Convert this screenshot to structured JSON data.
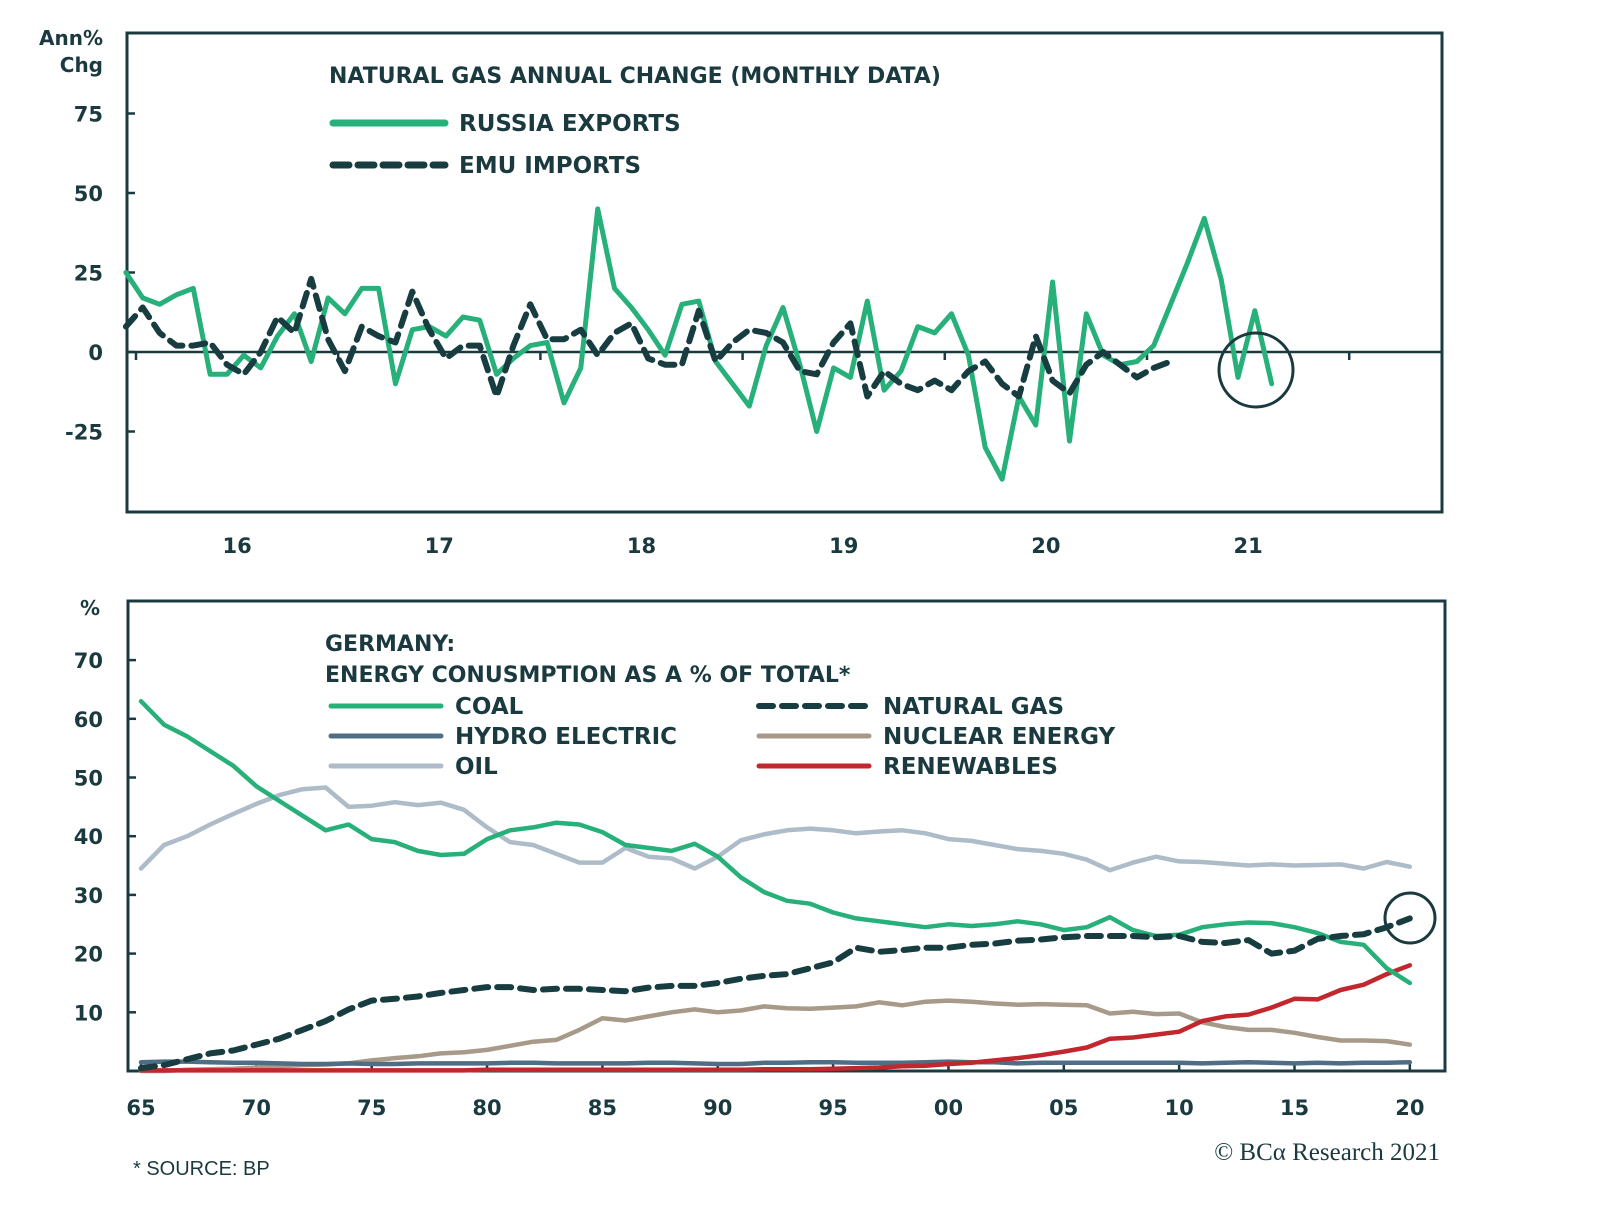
{
  "colors": {
    "axis": "#1b3a3f",
    "russia": "#27b07a",
    "emu": "#173d40",
    "coal": "#27b07a",
    "natural_gas": "#173d40",
    "hydro": "#4f6e85",
    "nuclear": "#a89a88",
    "oil": "#adbcc8",
    "renewables": "#c1272d"
  },
  "chart_data": [
    {
      "type": "line",
      "title": "NATURAL GAS ANNUAL CHANGE (MONTHLY DATA)",
      "ylabel_line1": "Ann%",
      "ylabel_line2": "Chg",
      "xlabel": "",
      "ylim": [
        -50,
        100
      ],
      "yticks": [
        75,
        50,
        25,
        0,
        -25
      ],
      "ytick_labels": [
        "75",
        "50",
        "25",
        "0",
        "-25"
      ],
      "xlim": [
        2015.92,
        2022.42
      ],
      "xticks": [
        2016.5,
        2017.5,
        2018.5,
        2019.5,
        2020.5,
        2021.5
      ],
      "xtick_labels": [
        "16",
        "17",
        "18",
        "19",
        "20",
        "21"
      ],
      "x_start": 2015.95,
      "x_step_months": 1,
      "grid": false,
      "legend": "top-left",
      "annotation": "circle around latest readings (mid-2021)",
      "series": [
        {
          "name": "RUSSIA EXPORTS",
          "style": "solid",
          "values": [
            25,
            17,
            15,
            18,
            20,
            -7,
            -7,
            -1,
            -5,
            5,
            12,
            -3,
            17,
            12,
            20,
            20,
            -10,
            7,
            8,
            5,
            11,
            10,
            -7,
            -2,
            2,
            3,
            -16,
            -5,
            45,
            20,
            14,
            7,
            -1,
            15,
            16,
            -3,
            -10,
            -17,
            2,
            14,
            -4,
            -25,
            -5,
            -8,
            16,
            -12,
            -6,
            8,
            6,
            12,
            -1,
            -30,
            -40,
            -14,
            -23,
            22,
            -28,
            12,
            -1,
            -4,
            -3,
            2,
            15,
            28,
            42,
            23,
            -8,
            13,
            -10
          ]
        },
        {
          "name": "EMU IMPORTS",
          "style": "dashed",
          "values": [
            8,
            14,
            6,
            2,
            2,
            3,
            -4,
            -7,
            0,
            11,
            6,
            23,
            4,
            -6,
            8,
            5,
            3,
            19,
            7,
            -2,
            2,
            2,
            -14,
            2,
            15,
            4,
            4,
            7,
            -1,
            6,
            9,
            -2,
            -4,
            -4,
            13,
            -3,
            3,
            7,
            6,
            3,
            -6,
            -7,
            3,
            9,
            -14,
            -6,
            -10,
            -12,
            -9,
            -12,
            -6,
            -3,
            -10,
            -14,
            5,
            -9,
            -13,
            -4,
            0,
            -4,
            -8,
            -5,
            -3
          ]
        }
      ]
    },
    {
      "type": "line",
      "title_line1": "GERMANY:",
      "title_line2": "ENERGY CONUSMPTION AS A % OF TOTAL*",
      "ylabel": "%",
      "xlabel": "",
      "ylim": [
        0,
        75
      ],
      "yticks": [
        70,
        60,
        50,
        40,
        30,
        20,
        10
      ],
      "ytick_labels": [
        "70",
        "60",
        "50",
        "40",
        "30",
        "20",
        "10"
      ],
      "xlim": [
        1964.4,
        2021.6
      ],
      "xticks": [
        1965,
        1970,
        1975,
        1980,
        1985,
        1990,
        1995,
        2000,
        2005,
        2010,
        2015,
        2020
      ],
      "xtick_labels": [
        "65",
        "70",
        "75",
        "80",
        "85",
        "90",
        "95",
        "00",
        "05",
        "10",
        "15",
        "20"
      ],
      "x_start": 1965,
      "x_step_years": 1,
      "grid": false,
      "legend": "top-center",
      "annotation": "circle around natural gas 2020 value",
      "series": [
        {
          "name": "COAL",
          "style": "solid",
          "values": [
            63,
            59,
            57,
            54.5,
            52,
            48.5,
            46,
            43.5,
            41,
            42,
            39.5,
            39,
            37.5,
            36.8,
            37,
            39.5,
            41,
            41.5,
            42.3,
            42,
            40.7,
            38.5,
            38,
            37.5,
            38.7,
            36.5,
            33,
            30.5,
            29,
            28.5,
            27,
            26,
            25.5,
            25,
            24.5,
            25,
            24.7,
            25,
            25.5,
            25,
            24,
            24.5,
            26.2,
            24,
            23,
            23.2,
            24.5,
            25,
            25.3,
            25.2,
            24.5,
            23.5,
            22,
            21.5,
            17.5,
            15
          ]
        },
        {
          "name": "NATURAL GAS",
          "style": "dashed",
          "values": [
            0.5,
            1,
            2,
            3,
            3.5,
            4.5,
            5.5,
            7,
            8.5,
            10.5,
            12,
            12.3,
            12.7,
            13.3,
            13.8,
            14.3,
            14.3,
            13.8,
            14,
            14,
            13.8,
            13.6,
            14.2,
            14.5,
            14.5,
            15,
            15.7,
            16.2,
            16.5,
            17.5,
            18.5,
            21,
            20.3,
            20.6,
            21,
            21,
            21.5,
            21.7,
            22.2,
            22.4,
            22.8,
            23,
            23,
            23,
            22.8,
            23,
            22,
            21.8,
            22.3,
            20,
            20.5,
            22.5,
            23,
            23.3,
            24.5,
            26
          ]
        },
        {
          "name": "HYDRO ELECTRIC",
          "style": "solid",
          "values": [
            1.5,
            1.6,
            1.6,
            1.5,
            1.4,
            1.4,
            1.3,
            1.2,
            1.2,
            1.3,
            1.2,
            1.2,
            1.3,
            1.3,
            1.3,
            1.3,
            1.4,
            1.4,
            1.3,
            1.3,
            1.3,
            1.3,
            1.4,
            1.4,
            1.3,
            1.2,
            1.2,
            1.4,
            1.4,
            1.5,
            1.5,
            1.4,
            1.4,
            1.4,
            1.5,
            1.6,
            1.5,
            1.5,
            1.3,
            1.4,
            1.4,
            1.4,
            1.4,
            1.4,
            1.4,
            1.4,
            1.3,
            1.4,
            1.5,
            1.4,
            1.3,
            1.4,
            1.3,
            1.4,
            1.4,
            1.5
          ]
        },
        {
          "name": "NUCLEAR ENERGY",
          "style": "solid",
          "values": [
            0,
            0,
            0.2,
            0.3,
            0.4,
            0.6,
            0.8,
            1,
            1.1,
            1.3,
            1.8,
            2.2,
            2.5,
            3,
            3.2,
            3.6,
            4.3,
            5,
            5.3,
            7,
            9,
            8.6,
            9.3,
            10,
            10.5,
            10,
            10.3,
            11,
            10.7,
            10.6,
            10.8,
            11,
            11.7,
            11.2,
            11.8,
            12,
            11.8,
            11.5,
            11.3,
            11.4,
            11.3,
            11.2,
            9.8,
            10.1,
            9.7,
            9.8,
            8.3,
            7.5,
            7,
            7,
            6.5,
            5.8,
            5.2,
            5.2,
            5.1,
            4.5
          ]
        },
        {
          "name": "OIL",
          "style": "solid",
          "values": [
            34.5,
            38.5,
            40,
            42,
            43.8,
            45.5,
            47,
            48,
            48.3,
            45,
            45.2,
            45.8,
            45.3,
            45.7,
            44.5,
            41.5,
            39,
            38.5,
            37,
            35.5,
            35.5,
            38,
            36.5,
            36.2,
            34.5,
            36.5,
            39.3,
            40.3,
            41,
            41.3,
            41,
            40.5,
            40.8,
            41,
            40.5,
            39.5,
            39.2,
            38.5,
            37.8,
            37.5,
            37,
            36,
            34.2,
            35.5,
            36.5,
            35.7,
            35.6,
            35.3,
            35,
            35.2,
            35,
            35.1,
            35.2,
            34.5,
            35.6,
            34.8
          ]
        },
        {
          "name": "RENEWABLES",
          "style": "solid",
          "values": [
            0.1,
            0.1,
            0.1,
            0.1,
            0.1,
            0.1,
            0.1,
            0.1,
            0.1,
            0.1,
            0.1,
            0.1,
            0.1,
            0.1,
            0.1,
            0.2,
            0.2,
            0.2,
            0.2,
            0.2,
            0.2,
            0.2,
            0.2,
            0.2,
            0.2,
            0.2,
            0.2,
            0.3,
            0.3,
            0.3,
            0.4,
            0.5,
            0.6,
            0.8,
            0.9,
            1.2,
            1.4,
            1.8,
            2.2,
            2.7,
            3.3,
            4,
            5.5,
            5.7,
            6.2,
            6.7,
            8.5,
            9.3,
            9.6,
            10.8,
            12.3,
            12.2,
            13.8,
            14.7,
            16.5,
            18
          ]
        }
      ]
    }
  ],
  "footer": {
    "source": "* SOURCE: BP",
    "credit": "© BCα Research 2021"
  }
}
